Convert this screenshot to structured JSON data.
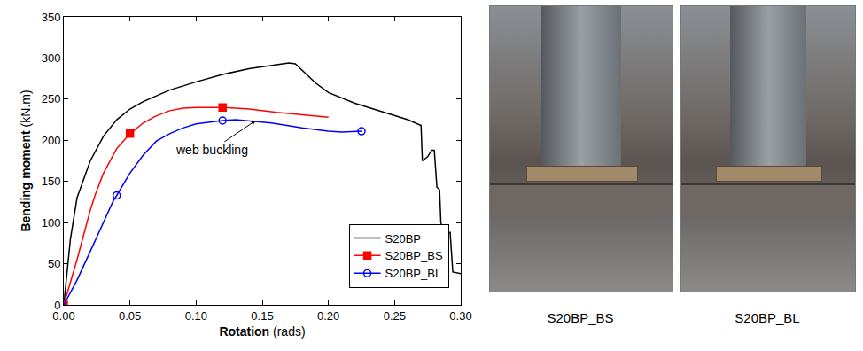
{
  "chart_data": {
    "type": "line",
    "x_label": "Rotation (rads)",
    "y_label": "Bending moment (kN.m)",
    "xlim": [
      0,
      0.3
    ],
    "ylim": [
      0,
      350
    ],
    "xticks": [
      {
        "value": 0,
        "label": "0.00"
      },
      {
        "value": 0.05,
        "label": "0.05"
      },
      {
        "value": 0.1,
        "label": "0.10"
      },
      {
        "value": 0.15,
        "label": "0.15"
      },
      {
        "value": 0.2,
        "label": "0.20"
      },
      {
        "value": 0.25,
        "label": "0.25"
      },
      {
        "value": 0.3,
        "label": "0.30"
      }
    ],
    "yticks": [
      0,
      50,
      100,
      150,
      200,
      250,
      300,
      350
    ],
    "grid": false,
    "legend": "lower right",
    "annotations": [
      {
        "text": "web buckling",
        "x": 0.145,
        "y": 224,
        "text_x": 0.112,
        "text_y": 188
      }
    ],
    "series": [
      {
        "name": "S20BP",
        "color": "#000000",
        "line_style": "solid",
        "x": [
          0,
          0.005,
          0.01,
          0.02,
          0.03,
          0.04,
          0.05,
          0.06,
          0.07,
          0.08,
          0.1,
          0.12,
          0.14,
          0.16,
          0.17,
          0.175,
          0.18,
          0.19,
          0.2,
          0.22,
          0.24,
          0.26,
          0.27,
          0.271,
          0.275,
          0.278,
          0.28,
          0.282,
          0.284,
          0.285,
          0.287,
          0.292,
          0.294,
          0.3
        ],
        "values": [
          0,
          80,
          130,
          175,
          205,
          225,
          238,
          247,
          254,
          261,
          271,
          280,
          287,
          292,
          294,
          293,
          285,
          270,
          258,
          245,
          235,
          225,
          218,
          175,
          180,
          188,
          188,
          143,
          140,
          100,
          88,
          88,
          40,
          38
        ]
      },
      {
        "name": "S20BP_BS",
        "color": "#ff0000",
        "line_style": "solid",
        "marker": "square",
        "x": [
          0,
          0.01,
          0.02,
          0.024,
          0.03,
          0.04,
          0.05,
          0.06,
          0.069,
          0.08,
          0.09,
          0.1,
          0.12,
          0.14,
          0.161,
          0.18,
          0.2
        ],
        "values": [
          0,
          55,
          115,
          135,
          160,
          190,
          208,
          221,
          229,
          236,
          239,
          240,
          240,
          238,
          234,
          231,
          228
        ]
      },
      {
        "name": "S20BP_BL",
        "color": "#0000ff",
        "line_style": "solid",
        "marker": "circle-open",
        "x": [
          0,
          0.01,
          0.02,
          0.03,
          0.037,
          0.04,
          0.05,
          0.06,
          0.07,
          0.08,
          0.09,
          0.1,
          0.12,
          0.13,
          0.145,
          0.157,
          0.18,
          0.2,
          0.21,
          0.225
        ],
        "values": [
          0,
          30,
          65,
          100,
          125,
          133,
          160,
          182,
          199,
          208,
          215,
          220,
          224,
          225,
          223,
          221,
          215,
          211,
          210,
          211
        ]
      }
    ]
  },
  "photos": [
    {
      "caption": "S20BP_BS"
    },
    {
      "caption": "S20BP_BL"
    }
  ]
}
